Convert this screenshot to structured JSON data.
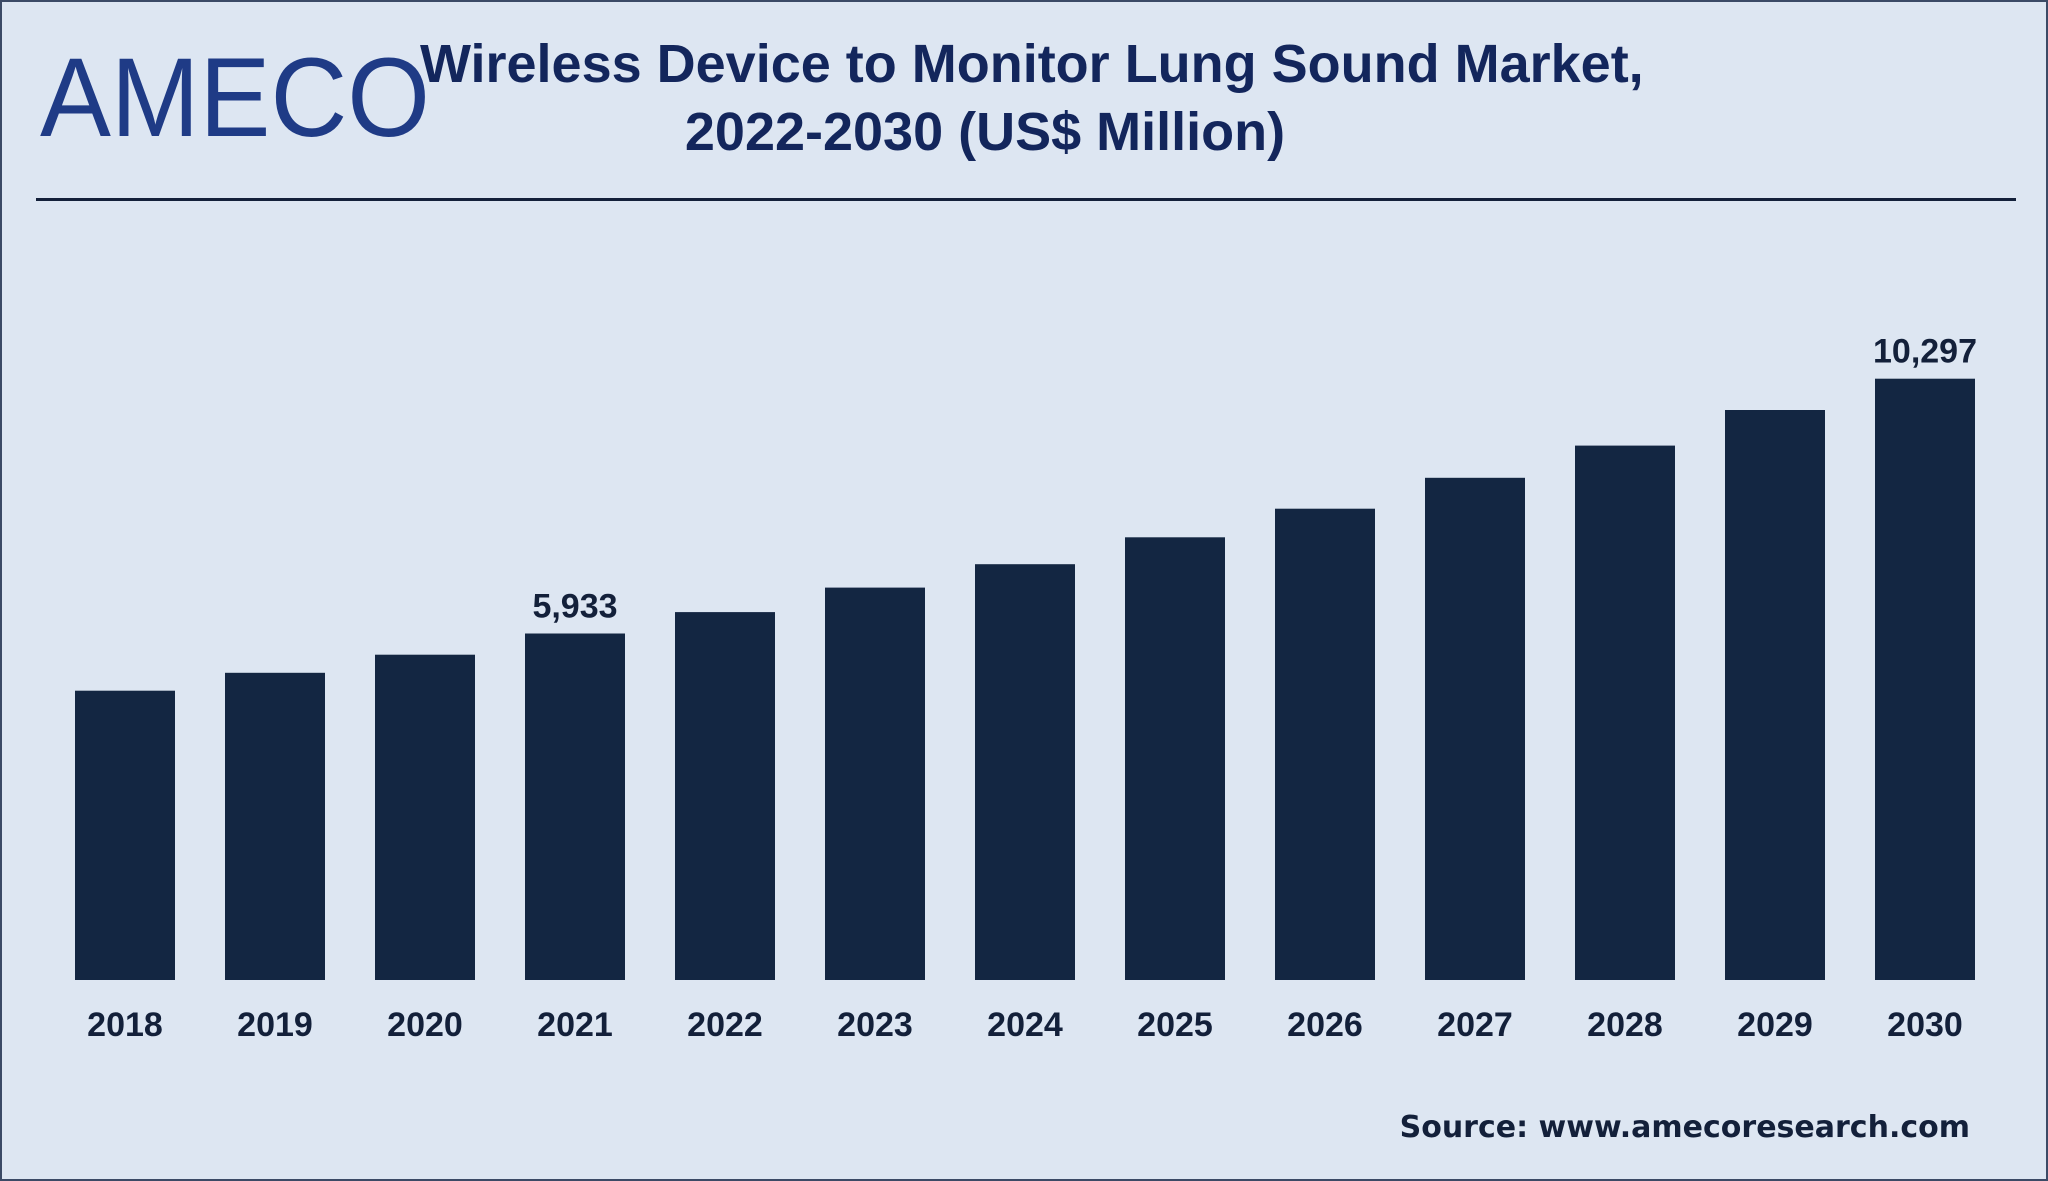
{
  "logo": {
    "text": "AMECO",
    "color": "#1f3b86"
  },
  "title_line1": "Wireless Device to Monitor Lung Sound Market,",
  "title_line2": "2022-2030 (US$ Million)",
  "source": "Source: www.amecoresearch.com",
  "colors": {
    "background": "#dde6f2",
    "bar": "#132642",
    "text": "#13203a"
  },
  "chart_data": {
    "type": "bar",
    "title": "Wireless Device to Monitor Lung Sound Market, 2022-2030 (US$ Million)",
    "xlabel": "",
    "ylabel": "",
    "categories": [
      "2018",
      "2019",
      "2020",
      "2021",
      "2022",
      "2023",
      "2024",
      "2025",
      "2026",
      "2027",
      "2028",
      "2029",
      "2030"
    ],
    "values": [
      4953,
      5260,
      5570,
      5933,
      6300,
      6720,
      7120,
      7580,
      8070,
      8600,
      9150,
      9760,
      10297
    ],
    "data_labels": [
      {
        "category": "2021",
        "text": "5,933"
      },
      {
        "category": "2030",
        "text": "10,297"
      }
    ],
    "ylim": [
      0,
      12000
    ],
    "grid": false,
    "legend": "none"
  }
}
